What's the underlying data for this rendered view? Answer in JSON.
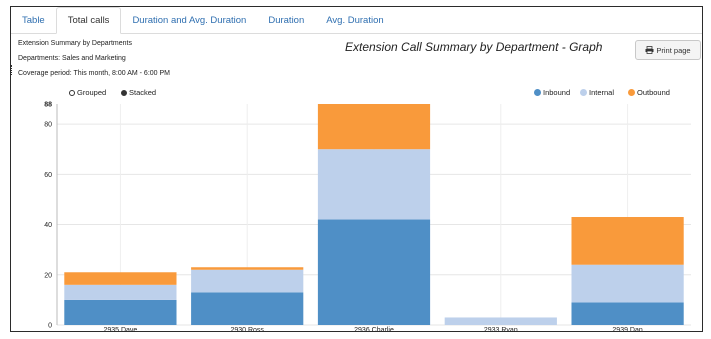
{
  "tabs": [
    {
      "label": "Table"
    },
    {
      "label": "Total calls"
    },
    {
      "label": "Duration and Avg. Duration"
    },
    {
      "label": "Duration"
    },
    {
      "label": "Avg. Duration"
    }
  ],
  "active_tab": "Total calls",
  "info": {
    "summary": "Extension Summary by Departments",
    "departments": "Departments: Sales and Marketing",
    "coverage": "Coverage period: This month, 8:00 AM - 6:00 PM"
  },
  "print_label": "Print page",
  "controls": {
    "grouped_label": "Grouped",
    "stacked_label": "Stacked",
    "selected": "Stacked"
  },
  "colors": {
    "inbound": "#4f8fc6",
    "internal": "#bdd0eb",
    "outbound": "#f99a3b",
    "tab_link": "#2f6fb0"
  },
  "chart_data": {
    "type": "bar",
    "stacked": true,
    "title": "Extension Call Summary by Department - Graph",
    "categories": [
      "2935 Dave",
      "2930 Ross",
      "2936 Charlie",
      "2933 Ryan",
      "2939 Dan"
    ],
    "series": [
      {
        "name": "Inbound",
        "values": [
          10,
          13,
          42,
          0,
          9
        ]
      },
      {
        "name": "Internal",
        "values": [
          6,
          9,
          28,
          3,
          15
        ]
      },
      {
        "name": "Outbound",
        "values": [
          5,
          1,
          18,
          0,
          19
        ]
      }
    ],
    "ylim": [
      0,
      88
    ],
    "yticks": [
      0,
      20,
      40,
      60,
      80,
      88
    ],
    "xlabel": "",
    "ylabel": "",
    "legend": "top-right",
    "grid": true
  }
}
